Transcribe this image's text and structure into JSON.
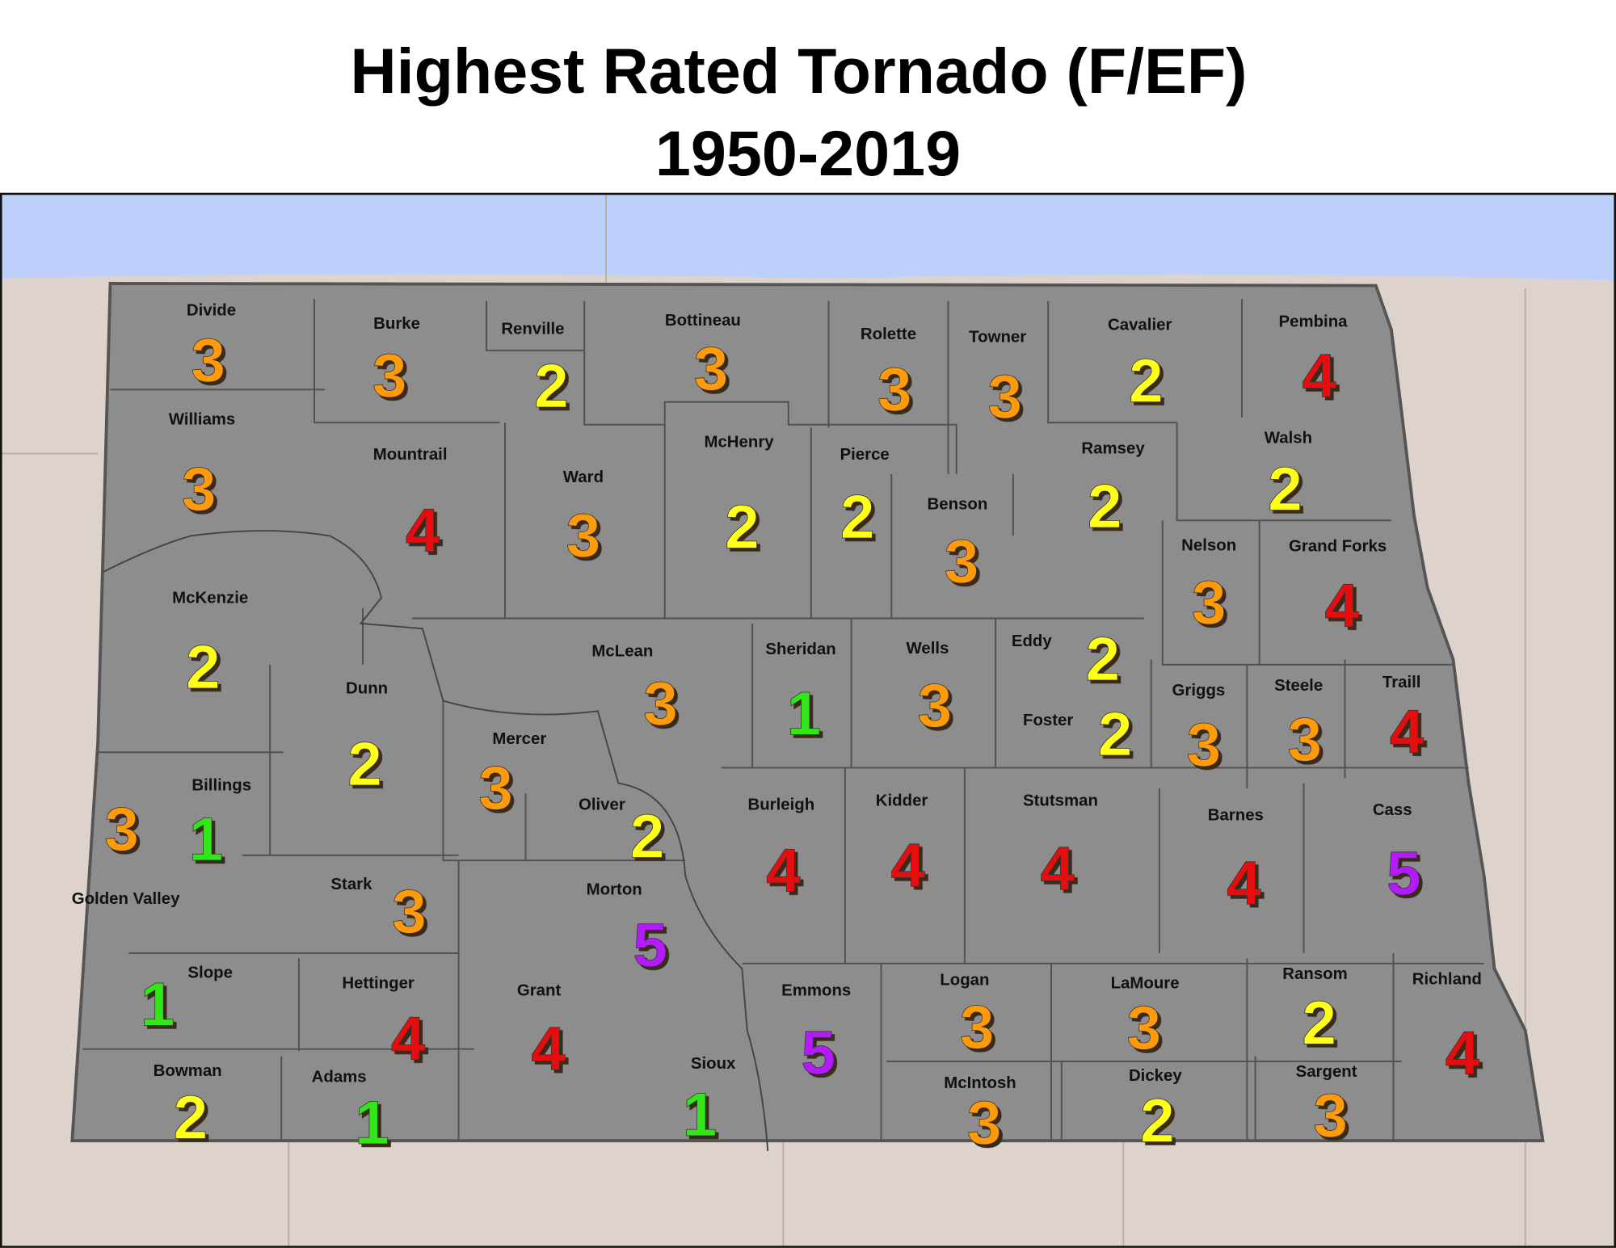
{
  "title": "Highest Rated Tornado (F/EF)",
  "subtitle": "1950-2019",
  "rating_colors": {
    "1": "#33e61a",
    "2": "#ffff1a",
    "3": "#ff9a0a",
    "4": "#e50d0d",
    "5": "#b51aff"
  },
  "counties": [
    {
      "name": "Divide",
      "rating": 3
    },
    {
      "name": "Burke",
      "rating": 3
    },
    {
      "name": "Renville",
      "rating": 2
    },
    {
      "name": "Bottineau",
      "rating": 3
    },
    {
      "name": "Rolette",
      "rating": 3
    },
    {
      "name": "Towner",
      "rating": 3
    },
    {
      "name": "Cavalier",
      "rating": 2
    },
    {
      "name": "Pembina",
      "rating": 4
    },
    {
      "name": "Williams",
      "rating": 3
    },
    {
      "name": "Mountrail",
      "rating": 4
    },
    {
      "name": "Ward",
      "rating": 3
    },
    {
      "name": "McHenry",
      "rating": 2
    },
    {
      "name": "Pierce",
      "rating": 2
    },
    {
      "name": "Benson",
      "rating": 3
    },
    {
      "name": "Ramsey",
      "rating": 2
    },
    {
      "name": "Walsh",
      "rating": 2
    },
    {
      "name": "Nelson",
      "rating": 3
    },
    {
      "name": "Grand Forks",
      "rating": 4
    },
    {
      "name": "McKenzie",
      "rating": 2
    },
    {
      "name": "McLean",
      "rating": 3
    },
    {
      "name": "Sheridan",
      "rating": 1
    },
    {
      "name": "Wells",
      "rating": 3
    },
    {
      "name": "Eddy",
      "rating": 2
    },
    {
      "name": "Foster",
      "rating": 2
    },
    {
      "name": "Griggs",
      "rating": 3
    },
    {
      "name": "Steele",
      "rating": 3
    },
    {
      "name": "Traill",
      "rating": 4
    },
    {
      "name": "Dunn",
      "rating": 2
    },
    {
      "name": "Mercer",
      "rating": 3
    },
    {
      "name": "Billings",
      "rating": 1
    },
    {
      "name": "Golden Valley",
      "rating": 3
    },
    {
      "name": "Oliver",
      "rating": 2
    },
    {
      "name": "Burleigh",
      "rating": 4
    },
    {
      "name": "Kidder",
      "rating": 4
    },
    {
      "name": "Stutsman",
      "rating": 4
    },
    {
      "name": "Barnes",
      "rating": 4
    },
    {
      "name": "Cass",
      "rating": 5
    },
    {
      "name": "Stark",
      "rating": 3
    },
    {
      "name": "Morton",
      "rating": 5
    },
    {
      "name": "Slope",
      "rating": 1
    },
    {
      "name": "Hettinger",
      "rating": 4
    },
    {
      "name": "Grant",
      "rating": 4
    },
    {
      "name": "Emmons",
      "rating": 5
    },
    {
      "name": "Logan",
      "rating": 3
    },
    {
      "name": "LaMoure",
      "rating": 3
    },
    {
      "name": "Ransom",
      "rating": 2
    },
    {
      "name": "Richland",
      "rating": 4
    },
    {
      "name": "Sioux",
      "rating": 1
    },
    {
      "name": "Bowman",
      "rating": 2
    },
    {
      "name": "Adams",
      "rating": 1
    },
    {
      "name": "McIntosh",
      "rating": 3
    },
    {
      "name": "Dickey",
      "rating": 2
    },
    {
      "name": "Sargent",
      "rating": 3
    }
  ]
}
